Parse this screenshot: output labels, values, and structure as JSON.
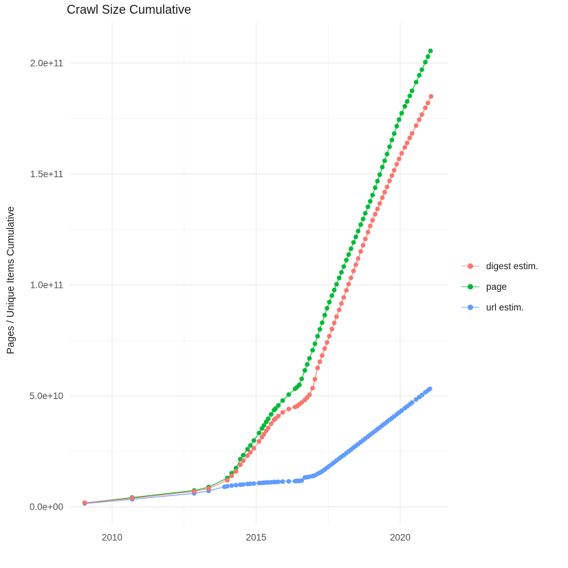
{
  "chart_data": {
    "type": "scatter",
    "title": "Crawl Size Cumulative",
    "xlabel": "",
    "ylabel": "Pages / Unique Items Cumulative",
    "point_format": "[year, cumulative_items_billions]",
    "background": "#ffffff",
    "grid": {
      "major_color": "#EBEBEB",
      "minor_color": "#F2F2F2",
      "on": true
    },
    "axes": {
      "x": {
        "domain": [
          2008.52,
          2021.67
        ],
        "major_ticks": [
          {
            "value": 2010,
            "label": "2010"
          },
          {
            "value": 2015,
            "label": "2015"
          },
          {
            "value": 2020,
            "label": "2020"
          }
        ],
        "minor_ticks": [
          2012.5,
          2017.5
        ],
        "tick_color": "#4d4d4d"
      },
      "y": {
        "domain_billions": [
          -7.74,
          218.2
        ],
        "major_ticks": [
          {
            "value_billions": 0,
            "label": "0.0e+00"
          },
          {
            "value_billions": 50,
            "label": "5.0e+10"
          },
          {
            "value_billions": 100,
            "label": "1.0e+11"
          },
          {
            "value_billions": 150,
            "label": "1.5e+11"
          },
          {
            "value_billions": 200,
            "label": "2.0e+11"
          }
        ],
        "minor_ticks_billions": [
          25,
          75,
          125,
          175
        ],
        "tick_color": "#4d4d4d"
      }
    },
    "legend": {
      "position": "right",
      "order": [
        "digest estim.",
        "page",
        "url estim."
      ]
    },
    "series": [
      {
        "name": "digest estim.",
        "color": "#F8766D",
        "points": [
          [
            2009.05,
            1.8
          ],
          [
            2010.7,
            3.9
          ],
          [
            2012.85,
            7.0
          ],
          [
            2013.35,
            8.3
          ],
          [
            2014.0,
            12.0
          ],
          [
            2014.15,
            14.0
          ],
          [
            2014.3,
            16.0
          ],
          [
            2014.45,
            19.0
          ],
          [
            2014.55,
            20.8
          ],
          [
            2014.7,
            23.1
          ],
          [
            2014.8,
            24.6
          ],
          [
            2014.92,
            26.4
          ],
          [
            2015.1,
            29.5
          ],
          [
            2015.2,
            31.4
          ],
          [
            2015.27,
            32.7
          ],
          [
            2015.35,
            34.3
          ],
          [
            2015.42,
            35.6
          ],
          [
            2015.52,
            37.5
          ],
          [
            2015.62,
            39.2
          ],
          [
            2015.67,
            39.8
          ],
          [
            2015.77,
            40.9
          ],
          [
            2015.92,
            42.6
          ],
          [
            2016.13,
            44.1
          ],
          [
            2016.35,
            45.0
          ],
          [
            2016.42,
            45.4
          ],
          [
            2016.5,
            46.2
          ],
          [
            2016.58,
            47.0
          ],
          [
            2016.69,
            48.2
          ],
          [
            2016.77,
            49.3
          ],
          [
            2016.85,
            50.5
          ],
          [
            2016.96,
            53.5
          ],
          [
            2017.04,
            57.5
          ],
          [
            2017.13,
            62.6
          ],
          [
            2017.21,
            65.4
          ],
          [
            2017.29,
            68.2
          ],
          [
            2017.38,
            71.3
          ],
          [
            2017.46,
            74.1
          ],
          [
            2017.54,
            76.9
          ],
          [
            2017.63,
            80.1
          ],
          [
            2017.71,
            82.9
          ],
          [
            2017.79,
            85.7
          ],
          [
            2017.88,
            88.8
          ],
          [
            2017.96,
            91.6
          ],
          [
            2018.04,
            94.4
          ],
          [
            2018.13,
            97.6
          ],
          [
            2018.21,
            100.4
          ],
          [
            2018.29,
            103.2
          ],
          [
            2018.38,
            106.3
          ],
          [
            2018.46,
            109.1
          ],
          [
            2018.54,
            111.9
          ],
          [
            2018.63,
            115.1
          ],
          [
            2018.71,
            117.9
          ],
          [
            2018.79,
            120.7
          ],
          [
            2018.88,
            123.8
          ],
          [
            2018.96,
            126.6
          ],
          [
            2019.04,
            129.2
          ],
          [
            2019.13,
            131.9
          ],
          [
            2019.21,
            134.3
          ],
          [
            2019.29,
            136.7
          ],
          [
            2019.38,
            139.4
          ],
          [
            2019.46,
            141.8
          ],
          [
            2019.54,
            144.2
          ],
          [
            2019.63,
            146.9
          ],
          [
            2019.71,
            149.3
          ],
          [
            2019.79,
            151.7
          ],
          [
            2019.88,
            154.4
          ],
          [
            2019.96,
            156.8
          ],
          [
            2020.05,
            159.3
          ],
          [
            2020.16,
            162.0
          ],
          [
            2020.24,
            164.0
          ],
          [
            2020.33,
            166.3
          ],
          [
            2020.41,
            168.3
          ],
          [
            2020.55,
            171.8
          ],
          [
            2020.66,
            174.5
          ],
          [
            2020.75,
            176.8
          ],
          [
            2020.87,
            179.8
          ],
          [
            2020.96,
            182.0
          ],
          [
            2021.07,
            185.0
          ]
        ]
      },
      {
        "name": "page",
        "color": "#00BA38",
        "points": [
          [
            2009.05,
            1.8
          ],
          [
            2010.7,
            4.2
          ],
          [
            2012.85,
            7.4
          ],
          [
            2013.35,
            8.9
          ],
          [
            2014.0,
            13.0
          ],
          [
            2014.15,
            15.2
          ],
          [
            2014.3,
            17.5
          ],
          [
            2014.45,
            21.5
          ],
          [
            2014.55,
            23.3
          ],
          [
            2014.7,
            26.0
          ],
          [
            2014.8,
            27.7
          ],
          [
            2014.92,
            29.9
          ],
          [
            2015.1,
            33.3
          ],
          [
            2015.2,
            35.3
          ],
          [
            2015.27,
            36.7
          ],
          [
            2015.35,
            38.3
          ],
          [
            2015.42,
            39.7
          ],
          [
            2015.52,
            41.7
          ],
          [
            2015.62,
            43.6
          ],
          [
            2015.67,
            44.3
          ],
          [
            2015.77,
            45.7
          ],
          [
            2015.92,
            47.9
          ],
          [
            2016.13,
            50.6
          ],
          [
            2016.35,
            53.2
          ],
          [
            2016.42,
            54.0
          ],
          [
            2016.5,
            55.0
          ],
          [
            2016.58,
            57.7
          ],
          [
            2016.69,
            61.5
          ],
          [
            2016.77,
            64.2
          ],
          [
            2016.85,
            66.9
          ],
          [
            2016.96,
            70.6
          ],
          [
            2017.04,
            73.5
          ],
          [
            2017.13,
            76.9
          ],
          [
            2017.21,
            80.0
          ],
          [
            2017.29,
            83.0
          ],
          [
            2017.38,
            86.4
          ],
          [
            2017.46,
            89.5
          ],
          [
            2017.54,
            92.3
          ],
          [
            2017.63,
            95.2
          ],
          [
            2017.71,
            97.7
          ],
          [
            2017.79,
            100.3
          ],
          [
            2017.88,
            103.2
          ],
          [
            2017.96,
            105.7
          ],
          [
            2018.04,
            108.3
          ],
          [
            2018.13,
            111.2
          ],
          [
            2018.21,
            113.7
          ],
          [
            2018.29,
            116.3
          ],
          [
            2018.38,
            119.2
          ],
          [
            2018.46,
            121.7
          ],
          [
            2018.54,
            124.3
          ],
          [
            2018.63,
            127.2
          ],
          [
            2018.71,
            129.7
          ],
          [
            2018.79,
            132.3
          ],
          [
            2018.88,
            135.2
          ],
          [
            2018.96,
            137.7
          ],
          [
            2019.04,
            140.5
          ],
          [
            2019.13,
            143.8
          ],
          [
            2019.21,
            146.8
          ],
          [
            2019.29,
            149.7
          ],
          [
            2019.38,
            153.1
          ],
          [
            2019.46,
            156.0
          ],
          [
            2019.54,
            159.0
          ],
          [
            2019.63,
            162.3
          ],
          [
            2019.71,
            165.3
          ],
          [
            2019.79,
            168.2
          ],
          [
            2019.88,
            171.6
          ],
          [
            2019.96,
            174.5
          ],
          [
            2020.05,
            177.4
          ],
          [
            2020.16,
            180.5
          ],
          [
            2020.24,
            182.7
          ],
          [
            2020.33,
            185.2
          ],
          [
            2020.41,
            187.5
          ],
          [
            2020.55,
            191.4
          ],
          [
            2020.66,
            194.5
          ],
          [
            2020.75,
            197.0
          ],
          [
            2020.87,
            200.4
          ],
          [
            2020.96,
            202.9
          ],
          [
            2021.05,
            205.5
          ]
        ]
      },
      {
        "name": "url estim.",
        "color": "#619CFF",
        "points": [
          [
            2009.05,
            1.5
          ],
          [
            2010.7,
            3.4
          ],
          [
            2012.85,
            6.1
          ],
          [
            2013.35,
            7.2
          ],
          [
            2013.9,
            9.0
          ],
          [
            2014.0,
            9.3
          ],
          [
            2014.15,
            9.6
          ],
          [
            2014.3,
            9.8
          ],
          [
            2014.45,
            10.0
          ],
          [
            2014.55,
            10.1
          ],
          [
            2014.7,
            10.3
          ],
          [
            2014.8,
            10.4
          ],
          [
            2014.92,
            10.5
          ],
          [
            2015.1,
            10.7
          ],
          [
            2015.2,
            10.8
          ],
          [
            2015.27,
            10.9
          ],
          [
            2015.35,
            11.0
          ],
          [
            2015.42,
            11.0
          ],
          [
            2015.52,
            11.1
          ],
          [
            2015.62,
            11.2
          ],
          [
            2015.67,
            11.2
          ],
          [
            2015.77,
            11.3
          ],
          [
            2015.92,
            11.4
          ],
          [
            2016.13,
            11.5
          ],
          [
            2016.35,
            11.6
          ],
          [
            2016.42,
            11.7
          ],
          [
            2016.5,
            11.7
          ],
          [
            2016.58,
            11.8
          ],
          [
            2016.69,
            13.2
          ],
          [
            2016.77,
            13.4
          ],
          [
            2016.85,
            13.6
          ],
          [
            2016.96,
            13.9
          ],
          [
            2017.04,
            14.2
          ],
          [
            2017.13,
            14.9
          ],
          [
            2017.21,
            15.4
          ],
          [
            2017.29,
            16.0
          ],
          [
            2017.38,
            16.8
          ],
          [
            2017.46,
            17.6
          ],
          [
            2017.54,
            18.4
          ],
          [
            2017.63,
            19.3
          ],
          [
            2017.71,
            20.1
          ],
          [
            2017.79,
            20.9
          ],
          [
            2017.88,
            21.8
          ],
          [
            2017.96,
            22.6
          ],
          [
            2018.04,
            23.3
          ],
          [
            2018.13,
            24.2
          ],
          [
            2018.21,
            25.0
          ],
          [
            2018.29,
            25.8
          ],
          [
            2018.38,
            26.7
          ],
          [
            2018.46,
            27.5
          ],
          [
            2018.54,
            28.3
          ],
          [
            2018.63,
            29.2
          ],
          [
            2018.71,
            30.0
          ],
          [
            2018.79,
            30.8
          ],
          [
            2018.88,
            31.7
          ],
          [
            2018.96,
            32.5
          ],
          [
            2019.04,
            33.3
          ],
          [
            2019.13,
            34.2
          ],
          [
            2019.21,
            35.0
          ],
          [
            2019.29,
            35.8
          ],
          [
            2019.38,
            36.7
          ],
          [
            2019.46,
            37.5
          ],
          [
            2019.54,
            38.3
          ],
          [
            2019.63,
            39.2
          ],
          [
            2019.71,
            40.0
          ],
          [
            2019.79,
            40.8
          ],
          [
            2019.88,
            41.7
          ],
          [
            2019.96,
            42.5
          ],
          [
            2020.05,
            43.4
          ],
          [
            2020.16,
            44.5
          ],
          [
            2020.24,
            45.3
          ],
          [
            2020.33,
            46.2
          ],
          [
            2020.41,
            47.0
          ],
          [
            2020.55,
            48.4
          ],
          [
            2020.66,
            49.5
          ],
          [
            2020.75,
            50.4
          ],
          [
            2020.87,
            51.6
          ],
          [
            2020.96,
            52.5
          ],
          [
            2021.03,
            53.2
          ]
        ]
      }
    ]
  }
}
